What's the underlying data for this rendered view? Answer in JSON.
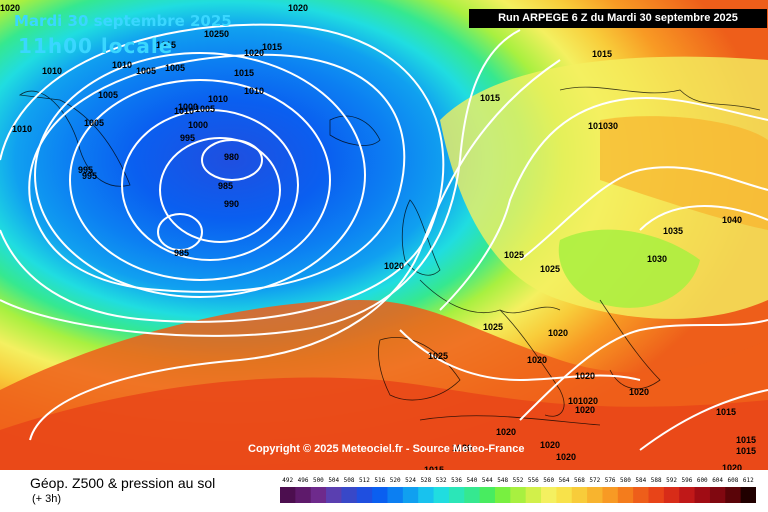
{
  "header": {
    "date_title": "Mardi 30 septembre 2025",
    "time_title": "11h00 locale",
    "run_info": "Run ARPEGE 6 Z du Mardi 30 septembre 2025"
  },
  "footer": {
    "copyright": "Copyright © 2025 Meteociel.fr - Source Meteo-France",
    "variable_title": "Géop. Z500 & pression au sol",
    "lead_time": "(+ 3h)"
  },
  "legend": {
    "values": [
      "492",
      "496",
      "500",
      "504",
      "508",
      "512",
      "516",
      "520",
      "524",
      "528",
      "532",
      "536",
      "540",
      "544",
      "548",
      "552",
      "556",
      "560",
      "564",
      "568",
      "572",
      "576",
      "580",
      "584",
      "588",
      "592",
      "596",
      "600",
      "604",
      "608",
      "612"
    ],
    "colors": [
      "#4c0e4f",
      "#5e1a6b",
      "#6e2a8c",
      "#5a3fb0",
      "#3848c8",
      "#1f4fe0",
      "#0a5ff0",
      "#0c7ff2",
      "#10a0f0",
      "#18c2ee",
      "#20dde0",
      "#2be6b8",
      "#35e890",
      "#48ec60",
      "#78f040",
      "#a8f040",
      "#d2f04a",
      "#f4f060",
      "#f8e24a",
      "#f8cc3a",
      "#f8b42e",
      "#f89a24",
      "#f47c1c",
      "#ee5e1a",
      "#e84418",
      "#d82c18",
      "#c01818",
      "#a00c14",
      "#800810",
      "#5a0408",
      "#200000"
    ]
  },
  "map": {
    "isobar_labels": [
      {
        "text": "1020"
      },
      {
        "text": "1020"
      },
      {
        "text": "1015"
      },
      {
        "text": "1010"
      },
      {
        "text": "1010"
      },
      {
        "text": "1005"
      },
      {
        "text": "1005"
      },
      {
        "text": "1010"
      },
      {
        "text": "1005"
      },
      {
        "text": "1005"
      },
      {
        "text": "1010"
      },
      {
        "text": "1020"
      },
      {
        "text": "1015"
      },
      {
        "text": "1015"
      },
      {
        "text": "1010"
      },
      {
        "text": "1010"
      },
      {
        "text": "1000"
      },
      {
        "text": "1005"
      },
      {
        "text": "1000"
      },
      {
        "text": "995"
      },
      {
        "text": "995"
      },
      {
        "text": "995"
      },
      {
        "text": "980"
      },
      {
        "text": "985"
      },
      {
        "text": "990"
      },
      {
        "text": "985"
      },
      {
        "text": "1015"
      },
      {
        "text": "1015"
      },
      {
        "text": "101030"
      },
      {
        "text": "1035"
      },
      {
        "text": "1040"
      },
      {
        "text": "1030"
      },
      {
        "text": "1025"
      },
      {
        "text": "1025"
      },
      {
        "text": "1020"
      },
      {
        "text": "1025"
      },
      {
        "text": "1020"
      },
      {
        "text": "1025"
      },
      {
        "text": "1020"
      },
      {
        "text": "1020"
      },
      {
        "text": "1020"
      },
      {
        "text": "101020"
      },
      {
        "text": "1020"
      },
      {
        "text": "1020"
      },
      {
        "text": "1020"
      },
      {
        "text": "1020"
      },
      {
        "text": "1020"
      },
      {
        "text": "1015"
      },
      {
        "text": "1015"
      },
      {
        "text": "1015"
      },
      {
        "text": "1015"
      },
      {
        "text": "1020"
      },
      {
        "text": "10250"
      }
    ]
  }
}
